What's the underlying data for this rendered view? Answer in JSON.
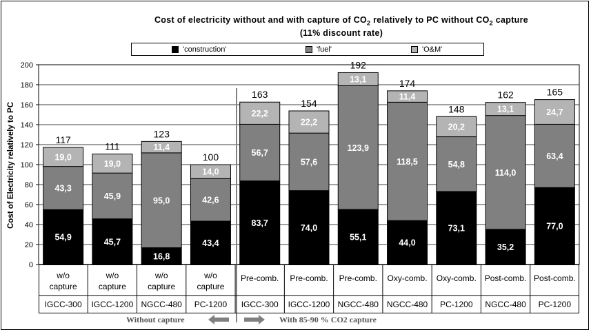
{
  "chart_data": {
    "type": "bar",
    "stacked": true,
    "title_line1": "Cost of electricity without and with capture of CO",
    "title_sub": "2",
    "title_line1b": " relatively to PC without CO",
    "title_sub2": "2",
    "title_line1c": " capture",
    "subtitle": "(11%  discount rate)",
    "ylabel": "Cost of Electricity relatively to PC",
    "ylim": [
      0,
      200
    ],
    "yticks": [
      0,
      20,
      40,
      60,
      80,
      100,
      120,
      140,
      160,
      180,
      200
    ],
    "grid": true,
    "legend_position": "top",
    "categories_top": [
      "w/o capture",
      "w/o capture",
      "w/o capture",
      "w/o capture",
      "Pre-comb.",
      "Pre-comb.",
      "Pre-comb.",
      "Oxy-comb.",
      "Oxy-comb.",
      "Post-comb.",
      "Post-comb."
    ],
    "categories_bottom": [
      "IGCC-300",
      "IGCC-1200",
      "NGCC-480",
      "PC-1200",
      "IGCC-300",
      "IGCC-1200",
      "NGCC-480",
      "NGCC-480",
      "PC-1200",
      "NGCC-480",
      "PC-1200"
    ],
    "totals": [
      "117",
      "111",
      "123",
      "100",
      "163",
      "154",
      "192",
      "174",
      "148",
      "162",
      "165"
    ],
    "series": [
      {
        "name": "'construction'",
        "color": "#000000",
        "values": [
          54.9,
          45.7,
          16.8,
          43.4,
          83.7,
          74.0,
          55.1,
          44.0,
          73.1,
          35.2,
          77.0
        ],
        "labels": [
          "54,9",
          "45,7",
          "16,8",
          "43,4",
          "83,7",
          "74,0",
          "55,1",
          "44,0",
          "73,1",
          "35,2",
          "77,0"
        ]
      },
      {
        "name": "'fuel'",
        "color": "#808080",
        "values": [
          43.3,
          45.9,
          95.0,
          42.6,
          56.7,
          57.6,
          123.9,
          118.5,
          54.8,
          114.0,
          63.4
        ],
        "labels": [
          "43,3",
          "45,9",
          "95,0",
          "42,6",
          "56,7",
          "57,6",
          "123,9",
          "118,5",
          "54,8",
          "114,0",
          "63,4"
        ]
      },
      {
        "name": "'O&M'",
        "color": "#b4b4b4",
        "values": [
          19.0,
          19.0,
          11.4,
          14.0,
          22.2,
          22.2,
          13.1,
          11.4,
          20.2,
          13.1,
          24.7
        ],
        "labels": [
          "19,0",
          "19,0",
          "11,4",
          "14,0",
          "22,2",
          "22,2",
          "13,1",
          "11,4",
          "20,2",
          "13,1",
          "24,7"
        ]
      }
    ],
    "footer_left": "Without capture",
    "footer_right": "With 85-90 % CO2 capture"
  },
  "colors": {
    "grid": "#000000",
    "arrow": "#808080",
    "separator": "#808080"
  }
}
